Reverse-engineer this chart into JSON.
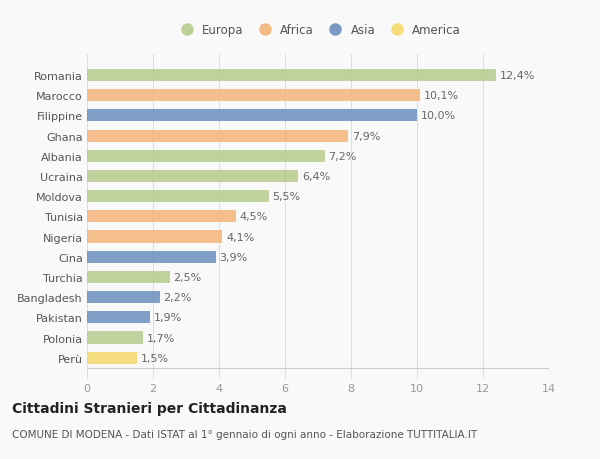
{
  "countries": [
    "Romania",
    "Marocco",
    "Filippine",
    "Ghana",
    "Albania",
    "Ucraina",
    "Moldova",
    "Tunisia",
    "Nigeria",
    "Cina",
    "Turchia",
    "Bangladesh",
    "Pakistan",
    "Polonia",
    "Perù"
  ],
  "values": [
    12.4,
    10.1,
    10.0,
    7.9,
    7.2,
    6.4,
    5.5,
    4.5,
    4.1,
    3.9,
    2.5,
    2.2,
    1.9,
    1.7,
    1.5
  ],
  "labels": [
    "12,4%",
    "10,1%",
    "10,0%",
    "7,9%",
    "7,2%",
    "6,4%",
    "5,5%",
    "4,5%",
    "4,1%",
    "3,9%",
    "2,5%",
    "2,2%",
    "1,9%",
    "1,7%",
    "1,5%"
  ],
  "continents": [
    "Europa",
    "Africa",
    "Asia",
    "Africa",
    "Europa",
    "Europa",
    "Europa",
    "Africa",
    "Africa",
    "Asia",
    "Europa",
    "Asia",
    "Asia",
    "Europa",
    "America"
  ],
  "continent_colors": {
    "Europa": "#b5cc8e",
    "Africa": "#f4b47a",
    "Asia": "#6b8fbf",
    "America": "#f6d86b"
  },
  "legend_order": [
    "Europa",
    "Africa",
    "Asia",
    "America"
  ],
  "title": "Cittadini Stranieri per Cittadinanza",
  "subtitle": "COMUNE DI MODENA - Dati ISTAT al 1° gennaio di ogni anno - Elaborazione TUTTITALIA.IT",
  "xlim": [
    0,
    14
  ],
  "xticks": [
    0,
    2,
    4,
    6,
    8,
    10,
    12,
    14
  ],
  "background_color": "#f9f9f9",
  "bar_height": 0.6,
  "label_fontsize": 8,
  "ytick_fontsize": 8,
  "title_fontsize": 10,
  "subtitle_fontsize": 7.5
}
